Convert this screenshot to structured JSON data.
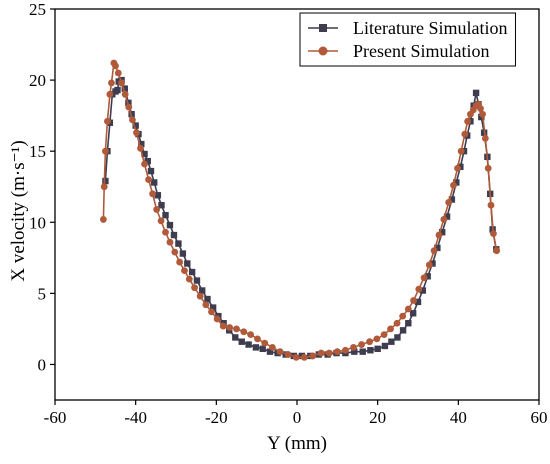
{
  "chart_data": {
    "type": "line",
    "title": "",
    "xlabel": "Y (mm)",
    "ylabel": "X velocity (m·s⁻¹)",
    "xlim": [
      -60,
      60
    ],
    "ylim": [
      -2.5,
      25
    ],
    "xticks": [
      -60,
      -40,
      -20,
      0,
      20,
      40,
      60
    ],
    "yticks": [
      0,
      5,
      10,
      15,
      20,
      25
    ],
    "grid": false,
    "legend_position": "top-right",
    "series": [
      {
        "name": "Literature Simulation",
        "color": "#3d3d4f",
        "marker": "square",
        "points": [
          [
            -47.5,
            12.9
          ],
          [
            -47.0,
            15.0
          ],
          [
            -46.4,
            17.0
          ],
          [
            -45.8,
            19.0
          ],
          [
            -45.0,
            19.2
          ],
          [
            -44.5,
            19.3
          ],
          [
            -44.2,
            19.9
          ],
          [
            -43.5,
            20.0
          ],
          [
            -42.7,
            19.4
          ],
          [
            -41.8,
            18.4
          ],
          [
            -41.0,
            17.6
          ],
          [
            -40.0,
            16.8
          ],
          [
            -39.3,
            16.2
          ],
          [
            -38.6,
            15.5
          ],
          [
            -37.8,
            14.8
          ],
          [
            -37.0,
            14.3
          ],
          [
            -36.2,
            13.6
          ],
          [
            -35.4,
            12.8
          ],
          [
            -34.5,
            11.9
          ],
          [
            -33.6,
            11.2
          ],
          [
            -32.6,
            10.5
          ],
          [
            -31.5,
            9.8
          ],
          [
            -30.5,
            9.1
          ],
          [
            -29.4,
            8.5
          ],
          [
            -28.3,
            7.8
          ],
          [
            -27.2,
            7.1
          ],
          [
            -26.0,
            6.5
          ],
          [
            -24.8,
            5.9
          ],
          [
            -23.5,
            5.2
          ],
          [
            -22.2,
            4.6
          ],
          [
            -20.8,
            4.0
          ],
          [
            -19.5,
            3.4
          ],
          [
            -18.2,
            2.9
          ],
          [
            -16.8,
            2.4
          ],
          [
            -15.3,
            1.9
          ],
          [
            -13.7,
            1.6
          ],
          [
            -12.0,
            1.4
          ],
          [
            -10.2,
            1.2
          ],
          [
            -8.5,
            1.1
          ],
          [
            -6.7,
            0.9
          ],
          [
            -4.8,
            0.8
          ],
          [
            -2.8,
            0.7
          ],
          [
            -0.8,
            0.6
          ],
          [
            1.2,
            0.6
          ],
          [
            3.3,
            0.6
          ],
          [
            5.4,
            0.7
          ],
          [
            7.6,
            0.7
          ],
          [
            9.8,
            0.8
          ],
          [
            12.0,
            0.8
          ],
          [
            14.2,
            0.9
          ],
          [
            16.3,
            0.9
          ],
          [
            18.2,
            1.0
          ],
          [
            20.0,
            1.1
          ],
          [
            21.8,
            1.3
          ],
          [
            23.4,
            1.6
          ],
          [
            24.9,
            1.9
          ],
          [
            26.3,
            2.4
          ],
          [
            27.6,
            2.9
          ],
          [
            28.8,
            3.6
          ],
          [
            30.0,
            4.4
          ],
          [
            31.2,
            5.2
          ],
          [
            32.4,
            6.2
          ],
          [
            33.6,
            7.1
          ],
          [
            34.8,
            8.2
          ],
          [
            36.0,
            9.3
          ],
          [
            37.2,
            10.4
          ],
          [
            38.4,
            11.6
          ],
          [
            39.5,
            12.8
          ],
          [
            40.5,
            13.9
          ],
          [
            41.4,
            15.0
          ],
          [
            42.2,
            16.1
          ],
          [
            43.0,
            17.1
          ],
          [
            43.8,
            18.2
          ],
          [
            44.4,
            19.1
          ],
          [
            45.0,
            18.3
          ],
          [
            45.7,
            17.4
          ],
          [
            46.4,
            16.3
          ],
          [
            47.2,
            14.6
          ],
          [
            47.9,
            12.0
          ],
          [
            48.5,
            9.5
          ],
          [
            49.4,
            8.1
          ]
        ]
      },
      {
        "name": "Present Simulation",
        "color": "#b05a3a",
        "marker": "circle",
        "points": [
          [
            -48.0,
            10.2
          ],
          [
            -47.8,
            12.5
          ],
          [
            -47.5,
            15.0
          ],
          [
            -47.0,
            17.1
          ],
          [
            -46.4,
            19.0
          ],
          [
            -46.0,
            19.8
          ],
          [
            -45.4,
            21.2
          ],
          [
            -45.0,
            21.0
          ],
          [
            -44.3,
            20.5
          ],
          [
            -43.5,
            19.8
          ],
          [
            -42.6,
            19.0
          ],
          [
            -41.7,
            18.1
          ],
          [
            -40.8,
            17.2
          ],
          [
            -39.8,
            16.3
          ],
          [
            -38.8,
            15.2
          ],
          [
            -37.8,
            14.1
          ],
          [
            -36.8,
            13.0
          ],
          [
            -35.8,
            12.0
          ],
          [
            -34.8,
            10.9
          ],
          [
            -33.7,
            10.1
          ],
          [
            -32.6,
            9.3
          ],
          [
            -31.5,
            8.6
          ],
          [
            -30.3,
            7.9
          ],
          [
            -29.1,
            7.2
          ],
          [
            -27.9,
            6.6
          ],
          [
            -26.7,
            6.0
          ],
          [
            -25.4,
            5.4
          ],
          [
            -24.0,
            4.8
          ],
          [
            -22.6,
            4.2
          ],
          [
            -21.2,
            3.7
          ],
          [
            -19.8,
            3.2
          ],
          [
            -18.3,
            2.7
          ],
          [
            -16.7,
            2.6
          ],
          [
            -15.0,
            2.5
          ],
          [
            -13.2,
            2.3
          ],
          [
            -11.5,
            2.1
          ],
          [
            -9.8,
            1.8
          ],
          [
            -8.0,
            1.5
          ],
          [
            -6.1,
            1.2
          ],
          [
            -4.2,
            0.9
          ],
          [
            -2.2,
            0.7
          ],
          [
            -0.2,
            0.5
          ],
          [
            1.8,
            0.5
          ],
          [
            3.9,
            0.6
          ],
          [
            6.0,
            0.8
          ],
          [
            8.0,
            0.8
          ],
          [
            10.0,
            0.9
          ],
          [
            12.0,
            1.0
          ],
          [
            14.0,
            1.2
          ],
          [
            16.0,
            1.4
          ],
          [
            18.0,
            1.6
          ],
          [
            19.8,
            1.8
          ],
          [
            21.6,
            2.1
          ],
          [
            23.2,
            2.5
          ],
          [
            24.8,
            2.9
          ],
          [
            26.2,
            3.4
          ],
          [
            27.6,
            3.9
          ],
          [
            28.9,
            4.5
          ],
          [
            30.2,
            5.3
          ],
          [
            31.5,
            6.1
          ],
          [
            32.8,
            7.0
          ],
          [
            34.0,
            8.0
          ],
          [
            35.2,
            9.1
          ],
          [
            36.4,
            10.2
          ],
          [
            37.6,
            11.4
          ],
          [
            38.8,
            12.6
          ],
          [
            39.8,
            13.8
          ],
          [
            40.7,
            15.0
          ],
          [
            41.6,
            16.2
          ],
          [
            42.3,
            17.1
          ],
          [
            43.0,
            17.6
          ],
          [
            43.7,
            17.9
          ],
          [
            44.4,
            18.2
          ],
          [
            45.0,
            18.3
          ],
          [
            45.5,
            18.0
          ],
          [
            46.0,
            17.6
          ],
          [
            46.7,
            15.9
          ],
          [
            47.4,
            13.8
          ],
          [
            48.1,
            11.2
          ],
          [
            48.7,
            9.2
          ],
          [
            49.5,
            8.0
          ]
        ]
      }
    ]
  }
}
